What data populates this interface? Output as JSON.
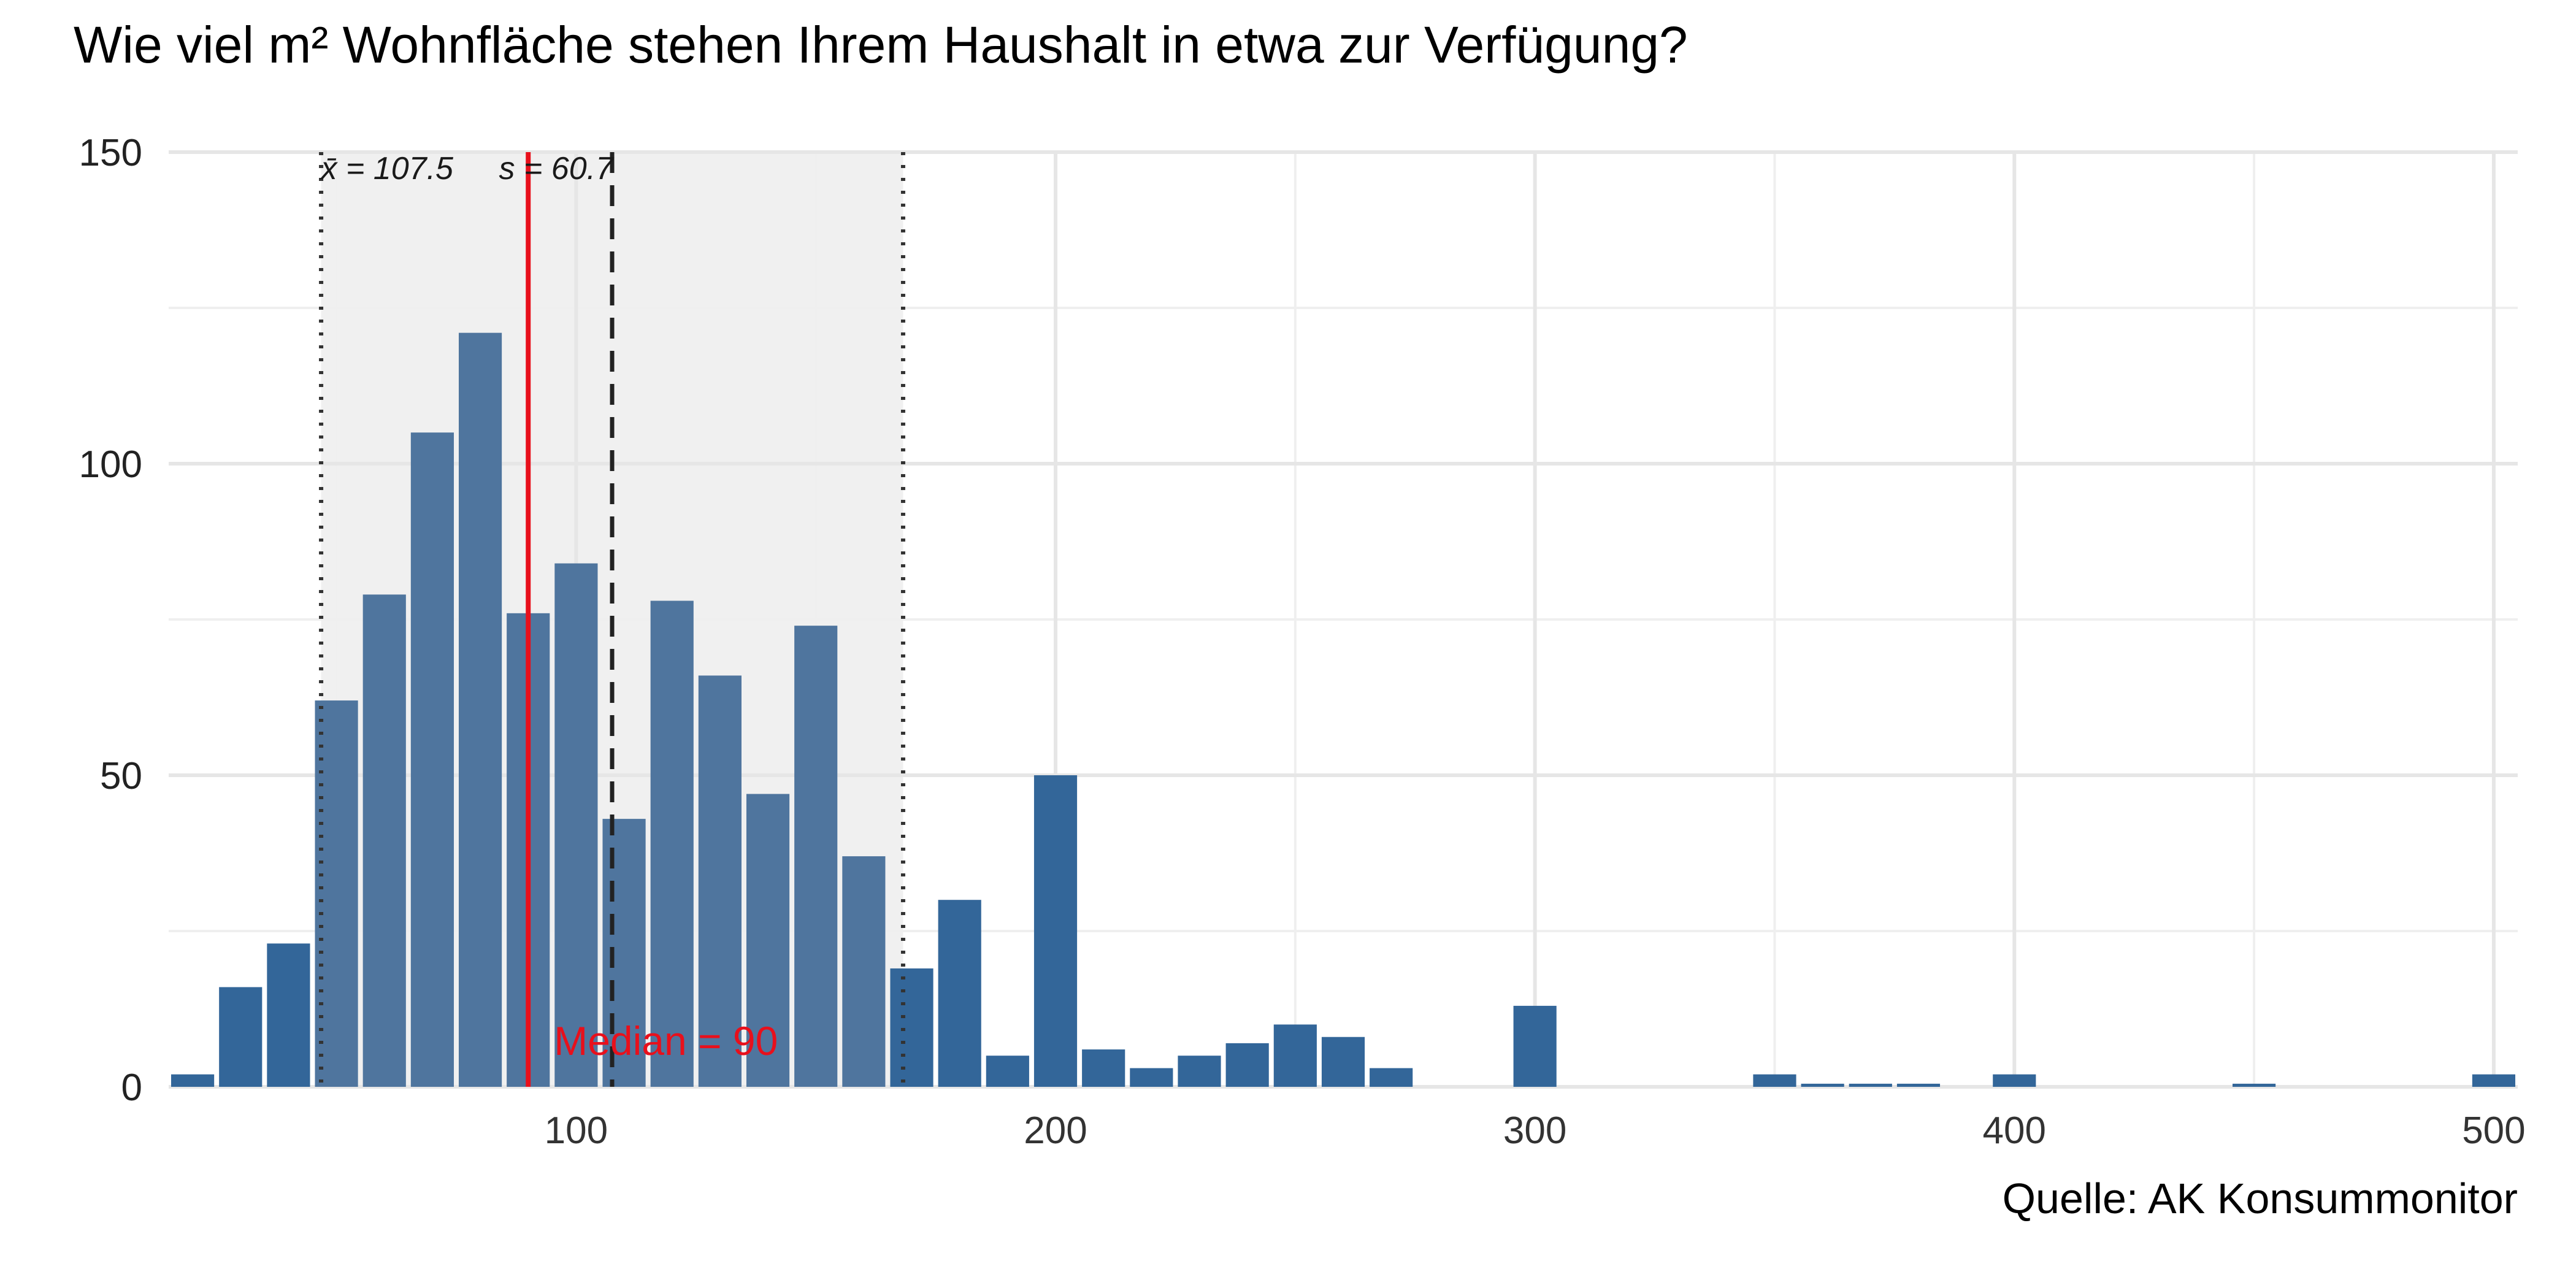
{
  "chart_data": {
    "type": "bar",
    "title": "Wie viel m² Wohnfläche stehen Ihrem Haushalt in etwa zur Verfügung?",
    "caption": "Quelle: AK Konsummonitor",
    "xlabel": "",
    "ylabel": "",
    "xlim": [
      15,
      505
    ],
    "ylim": [
      0,
      150
    ],
    "x_ticks": [
      100,
      200,
      300,
      400,
      500
    ],
    "y_ticks": [
      0,
      50,
      100,
      150
    ],
    "grid": true,
    "bin_width": 10,
    "bins": [
      {
        "x": 20,
        "value": 2
      },
      {
        "x": 30,
        "value": 16
      },
      {
        "x": 40,
        "value": 23
      },
      {
        "x": 50,
        "value": 62
      },
      {
        "x": 60,
        "value": 79
      },
      {
        "x": 70,
        "value": 105
      },
      {
        "x": 80,
        "value": 121
      },
      {
        "x": 90,
        "value": 76
      },
      {
        "x": 100,
        "value": 84
      },
      {
        "x": 110,
        "value": 43
      },
      {
        "x": 120,
        "value": 78
      },
      {
        "x": 130,
        "value": 66
      },
      {
        "x": 140,
        "value": 47
      },
      {
        "x": 150,
        "value": 74
      },
      {
        "x": 160,
        "value": 37
      },
      {
        "x": 170,
        "value": 19
      },
      {
        "x": 180,
        "value": 30
      },
      {
        "x": 190,
        "value": 5
      },
      {
        "x": 200,
        "value": 50
      },
      {
        "x": 210,
        "value": 6
      },
      {
        "x": 220,
        "value": 3
      },
      {
        "x": 230,
        "value": 5
      },
      {
        "x": 240,
        "value": 7
      },
      {
        "x": 250,
        "value": 10
      },
      {
        "x": 260,
        "value": 8
      },
      {
        "x": 270,
        "value": 3
      },
      {
        "x": 300,
        "value": 13
      },
      {
        "x": 350,
        "value": 2
      },
      {
        "x": 360,
        "value": 0.5
      },
      {
        "x": 370,
        "value": 0.5
      },
      {
        "x": 380,
        "value": 0.5
      },
      {
        "x": 400,
        "value": 2
      },
      {
        "x": 450,
        "value": 0.5
      },
      {
        "x": 500,
        "value": 2
      }
    ],
    "mean": 107.5,
    "sd": 60.7,
    "median": 90,
    "stats_label_mean": "x̄ = 107.5",
    "stats_label_sd": "s = 60.7",
    "median_label": "Median = 90",
    "colors": {
      "bar_in_sd": "#4f759e",
      "bar_outside": "#336699",
      "sd_band": "#f0f0f0",
      "median_line": "#e8101c",
      "mean_line": "#222222"
    }
  }
}
